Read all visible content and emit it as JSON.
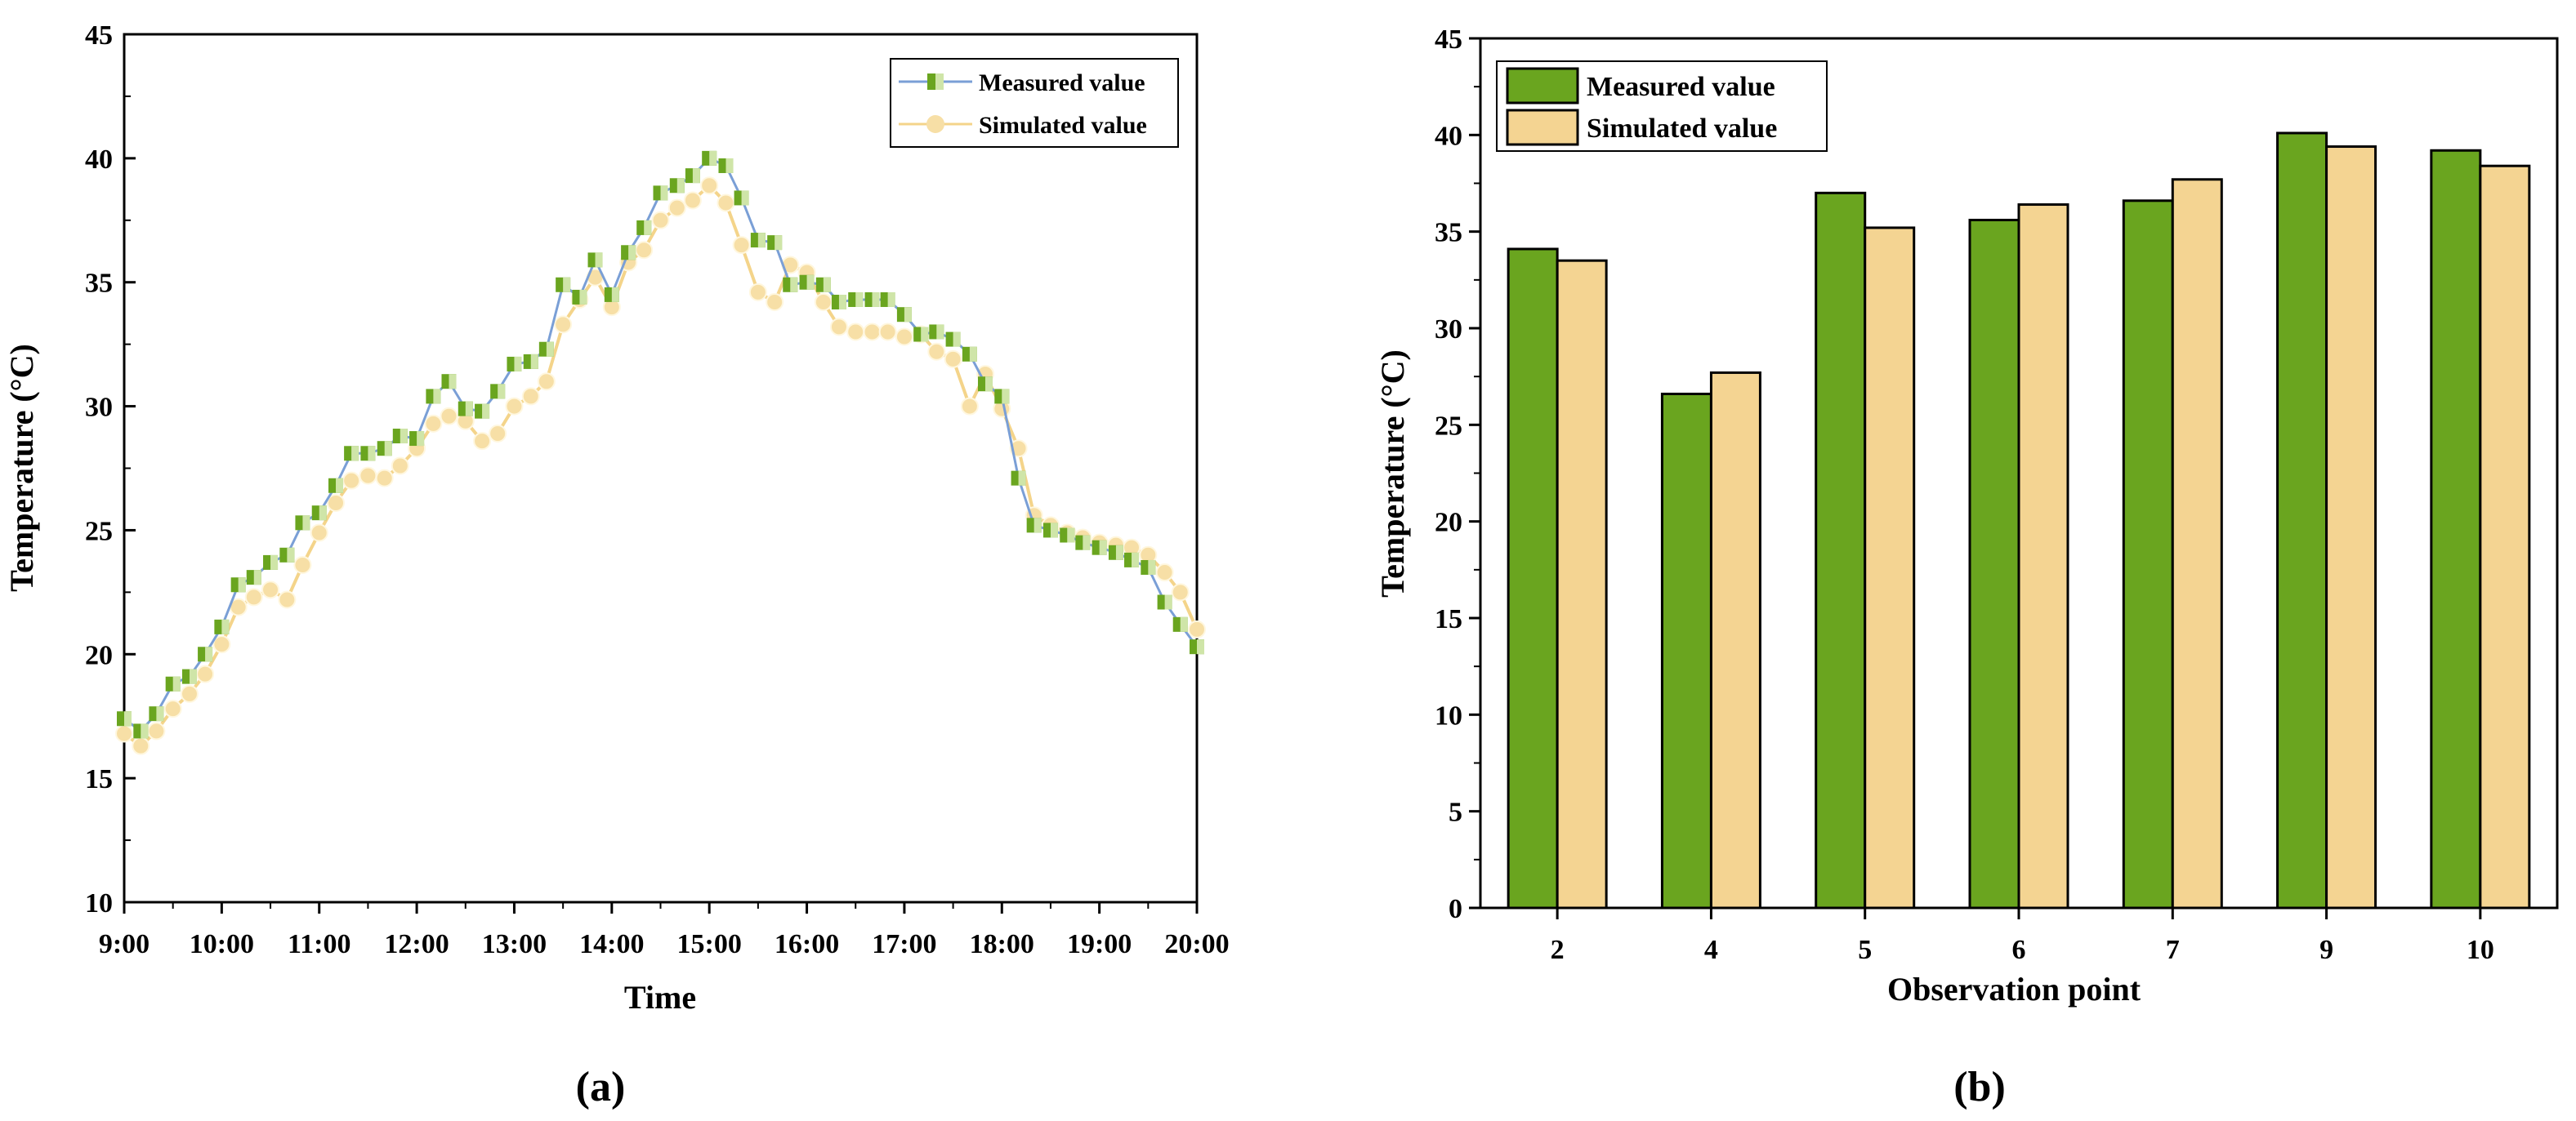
{
  "chart_data": [
    {
      "type": "line",
      "panel_label": "(a)",
      "xlabel": "Time",
      "ylabel": "Temperature (°C)",
      "ylim": [
        10,
        45
      ],
      "yticks": [
        10,
        15,
        20,
        25,
        30,
        35,
        40,
        45
      ],
      "xlim_hours": [
        9,
        20
      ],
      "xtick_labels": [
        "9:00",
        "10:00",
        "11:00",
        "12:00",
        "13:00",
        "14:00",
        "15:00",
        "16:00",
        "17:00",
        "18:00",
        "19:00",
        "20:00"
      ],
      "legend_position": "top-right",
      "series": [
        {
          "name": "Measured value",
          "color": "#7a9fd6",
          "marker_color": "#6aa51f",
          "x_hours": [
            9.0,
            9.17,
            9.33,
            9.5,
            9.67,
            9.83,
            10.0,
            10.17,
            10.33,
            10.5,
            10.67,
            10.83,
            11.0,
            11.17,
            11.33,
            11.5,
            11.67,
            11.83,
            12.0,
            12.17,
            12.33,
            12.5,
            12.67,
            12.83,
            13.0,
            13.17,
            13.33,
            13.5,
            13.67,
            13.83,
            14.0,
            14.17,
            14.33,
            14.5,
            14.67,
            14.83,
            15.0,
            15.17,
            15.33,
            15.5,
            15.67,
            15.83,
            16.0,
            16.17,
            16.33,
            16.5,
            16.67,
            16.83,
            17.0,
            17.17,
            17.33,
            17.5,
            17.67,
            17.83,
            18.0,
            18.17,
            18.33,
            18.5,
            18.67,
            18.83,
            19.0,
            19.17,
            19.33,
            19.5,
            19.67,
            19.83,
            20.0
          ],
          "values": [
            17.4,
            16.9,
            17.6,
            18.8,
            19.1,
            20.0,
            21.1,
            22.8,
            23.1,
            23.7,
            24.0,
            25.3,
            25.7,
            26.8,
            28.1,
            28.1,
            28.3,
            28.8,
            28.7,
            30.4,
            31.0,
            29.9,
            29.8,
            30.6,
            31.7,
            31.8,
            32.3,
            34.9,
            34.4,
            35.9,
            34.5,
            36.2,
            37.2,
            38.6,
            38.9,
            39.3,
            40.0,
            39.7,
            38.4,
            36.7,
            36.6,
            34.9,
            35.0,
            34.9,
            34.2,
            34.3,
            34.3,
            34.3,
            33.7,
            32.9,
            33.0,
            32.7,
            32.1,
            30.9,
            30.4,
            27.1,
            25.2,
            25.0,
            24.8,
            24.5,
            24.3,
            24.1,
            23.8,
            23.5,
            22.1,
            21.2,
            20.3
          ]
        },
        {
          "name": "Simulated value",
          "color": "#f4d48a",
          "marker_color": "#f7dfa6",
          "x_hours": [
            9.0,
            9.17,
            9.33,
            9.5,
            9.67,
            9.83,
            10.0,
            10.17,
            10.33,
            10.5,
            10.67,
            10.83,
            11.0,
            11.17,
            11.33,
            11.5,
            11.67,
            11.83,
            12.0,
            12.17,
            12.33,
            12.5,
            12.67,
            12.83,
            13.0,
            13.17,
            13.33,
            13.5,
            13.67,
            13.83,
            14.0,
            14.17,
            14.33,
            14.5,
            14.67,
            14.83,
            15.0,
            15.17,
            15.33,
            15.5,
            15.67,
            15.83,
            16.0,
            16.17,
            16.33,
            16.5,
            16.67,
            16.83,
            17.0,
            17.17,
            17.33,
            17.5,
            17.67,
            17.83,
            18.0,
            18.17,
            18.33,
            18.5,
            18.67,
            18.83,
            19.0,
            19.17,
            19.33,
            19.5,
            19.67,
            19.83,
            20.0
          ],
          "values": [
            16.8,
            16.3,
            16.9,
            17.8,
            18.4,
            19.2,
            20.4,
            21.9,
            22.3,
            22.6,
            22.2,
            23.6,
            24.9,
            26.1,
            27.0,
            27.2,
            27.1,
            27.6,
            28.3,
            29.3,
            29.6,
            29.4,
            28.6,
            28.9,
            30.0,
            30.4,
            31.0,
            33.3,
            34.3,
            35.2,
            34.0,
            35.8,
            36.3,
            37.5,
            38.0,
            38.3,
            38.9,
            38.2,
            36.5,
            34.6,
            34.2,
            35.7,
            35.4,
            34.2,
            33.2,
            33.0,
            33.0,
            33.0,
            32.8,
            32.9,
            32.2,
            31.9,
            30.0,
            31.3,
            29.9,
            28.3,
            25.6,
            25.2,
            24.9,
            24.7,
            24.5,
            24.4,
            24.3,
            24.0,
            23.3,
            22.5,
            21.0
          ]
        }
      ]
    },
    {
      "type": "bar",
      "panel_label": "(b)",
      "xlabel": "Observation point",
      "ylabel": "Temperature (°C)",
      "ylim": [
        0,
        45
      ],
      "yticks": [
        0,
        5,
        10,
        15,
        20,
        25,
        30,
        35,
        40,
        45
      ],
      "categories": [
        "2",
        "4",
        "5",
        "6",
        "7",
        "9",
        "10"
      ],
      "legend_position": "top-left",
      "series": [
        {
          "name": "Measured value",
          "color": "#6aa51f",
          "values": [
            34.1,
            26.6,
            37.0,
            35.6,
            36.6,
            40.1,
            39.2
          ]
        },
        {
          "name": "Simulated value",
          "color": "#f4d492",
          "values": [
            33.5,
            27.7,
            35.2,
            36.4,
            37.7,
            39.4,
            38.4
          ]
        }
      ]
    }
  ]
}
